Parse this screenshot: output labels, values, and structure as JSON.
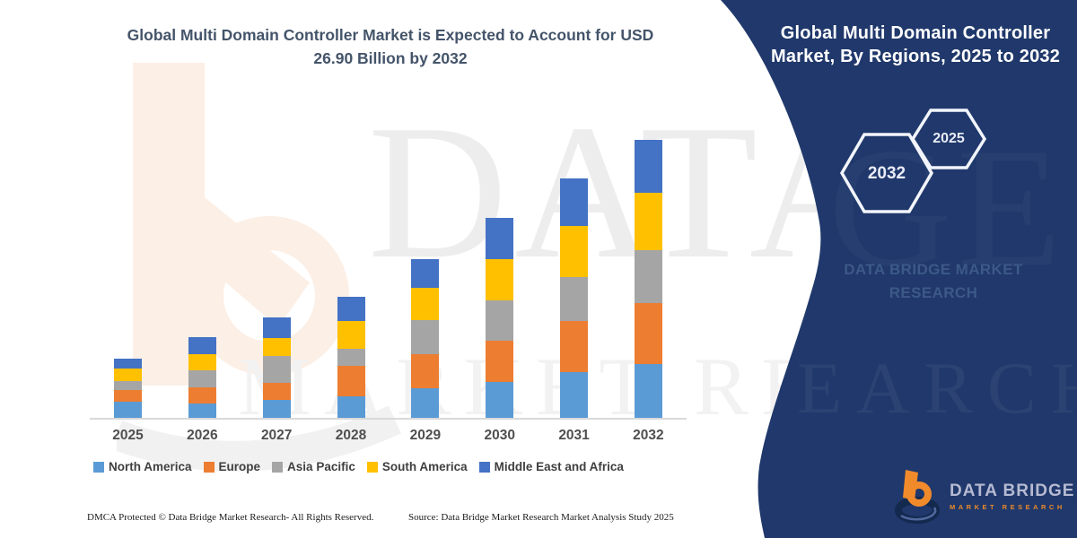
{
  "title": {
    "line1": "Global Multi Domain Controller Market is Expected to Account for USD",
    "line2": "26.90 Billion by 2032"
  },
  "watermarks": {
    "line1": "DATA BRIDGE",
    "line2": "MARKET RESEARCH",
    "panel_line1_fragment": "DGE",
    "panel_line2_fragment": "EARCH"
  },
  "panel": {
    "background": "#20386B",
    "heading_line1": "Global Multi Domain Controller",
    "heading_line2": "Market, By Regions, 2025 to 2032",
    "hexagon_large_label": "2032",
    "hexagon_small_label": "2025",
    "watermark_text_line1": "DATA BRIDGE MARKET",
    "watermark_text_line2": "RESEARCH",
    "logo": {
      "brand": "DATA BRIDGE",
      "tagline": "MARKET RESEARCH"
    }
  },
  "chart_data": {
    "type": "bar",
    "stacked": true,
    "title": "Global Multi Domain Controller Market is Expected to Account for USD 26.90 Billion by 2032",
    "unit": "USD Billion",
    "xlabel": "",
    "ylabel": "",
    "ylim": [
      0,
      28
    ],
    "grid": false,
    "legend_position": "bottom",
    "total_2032": 26.9,
    "categories": [
      "2025",
      "2026",
      "2027",
      "2028",
      "2029",
      "2030",
      "2031",
      "2032"
    ],
    "series": [
      {
        "name": "North America",
        "color": "#5B9BD5",
        "values": [
          1.55,
          1.35,
          1.75,
          2.05,
          2.85,
          3.5,
          4.4,
          5.25
        ]
      },
      {
        "name": "Europe",
        "color": "#ED7D31",
        "values": [
          1.1,
          1.6,
          1.6,
          3.0,
          3.35,
          3.95,
          4.95,
          5.85
        ]
      },
      {
        "name": "Asia Pacific",
        "color": "#A5A5A5",
        "values": [
          0.95,
          1.65,
          2.6,
          1.6,
          3.25,
          3.95,
          4.25,
          5.1
        ]
      },
      {
        "name": "South America",
        "color": "#FFC000",
        "values": [
          1.2,
          1.6,
          1.75,
          2.7,
          3.1,
          3.95,
          4.95,
          5.55
        ]
      },
      {
        "name": "Middle East and Africa",
        "color": "#4472C4",
        "values": [
          0.95,
          1.6,
          2.05,
          2.35,
          2.85,
          4.0,
          4.65,
          5.15
        ]
      }
    ],
    "totals": [
      5.75,
      7.8,
      9.75,
      11.7,
      15.4,
      19.35,
      23.2,
      26.9
    ]
  },
  "footer": {
    "dmca": "DMCA Protected © Data Bridge Market Research- All Rights Reserved.",
    "source": "Source: Data Bridge Market Research Market Analysis Study 2025"
  }
}
